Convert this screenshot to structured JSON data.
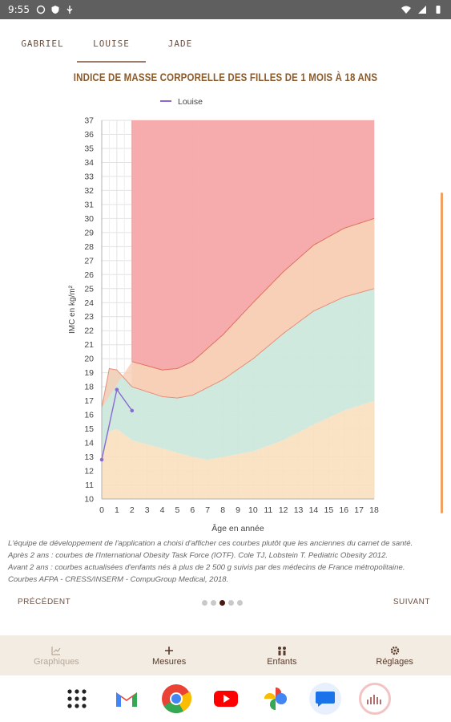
{
  "status": {
    "time": "9:55"
  },
  "tabs": [
    {
      "label": "GABRIEL",
      "active": false
    },
    {
      "label": "LOUISE",
      "active": true
    },
    {
      "label": "JADE",
      "active": false
    }
  ],
  "title": "INDICE DE MASSE CORPORELLE DES FILLES DE 1 MOIS À 18 ANS",
  "chart_data": {
    "type": "area",
    "title": "INDICE DE MASSE CORPORELLE DES FILLES DE 1 MOIS À 18 ANS",
    "xlabel": "Âge en année",
    "ylabel": "IMC en kg/m²",
    "xlim": [
      0,
      18
    ],
    "ylim": [
      10,
      37
    ],
    "legend": {
      "entries": [
        "Louise"
      ],
      "placement": "top-left"
    },
    "grid": true,
    "series": [
      {
        "name": "Louise",
        "x": [
          0,
          1,
          2
        ],
        "y": [
          12.8,
          17.8,
          16.3
        ],
        "color": "#8a6ad0"
      }
    ],
    "bands": {
      "colors": {
        "lower": "#fae0bf",
        "normal": "#cce8dc",
        "overweight": "#f8cdb4",
        "obese": "#f5a8a8"
      },
      "infant_lower_x": [
        0,
        0.5,
        1,
        2,
        4,
        6,
        7,
        8,
        10,
        12,
        14,
        16,
        18
      ],
      "infant_lower_y": [
        13,
        14.8,
        15.0,
        14.2,
        13.6,
        13.0,
        12.8,
        13.0,
        13.4,
        14.2,
        15.3,
        16.3,
        17.0
      ],
      "upper_normal_x": [
        0,
        0.5,
        1,
        2,
        4,
        5,
        6,
        8,
        10,
        12,
        14,
        16,
        18
      ],
      "upper_normal_y": [
        16.5,
        19.3,
        19.2,
        18.0,
        17.3,
        17.2,
        17.4,
        18.5,
        20.0,
        21.8,
        23.4,
        24.4,
        25.0
      ],
      "upper_overweight_x": [
        2,
        4,
        5,
        6,
        8,
        10,
        12,
        14,
        16,
        18
      ],
      "upper_overweight_y": [
        19.8,
        19.2,
        19.3,
        19.8,
        21.7,
        24.0,
        26.2,
        28.1,
        29.3,
        30.0
      ]
    }
  },
  "note": [
    "L'équipe de développement de l'application a choisi d'afficher ces courbes plutôt que les anciennes du carnet de santé.",
    "Après 2 ans : courbes de l'International Obesity Task Force (IOTF). Cole TJ, Lobstein T. Pediatric Obesity 2012.",
    "Avant 2 ans : courbes actualisées d'enfants nés à plus de 2 500 g suivis par des médecins de France métropolitaine.",
    "Courbes AFPA - CRESS/INSERM - CompuGroup Medical, 2018."
  ],
  "pager": {
    "prev": "PRÉCÉDENT",
    "next": "SUIVANT",
    "count": 5,
    "active": 2
  },
  "nav": [
    {
      "label": "Graphiques",
      "icon": "chart-icon",
      "disabled": true
    },
    {
      "label": "Mesures",
      "icon": "plus-icon",
      "disabled": false
    },
    {
      "label": "Enfants",
      "icon": "children-icon",
      "disabled": false
    },
    {
      "label": "Réglages",
      "icon": "gear-icon",
      "disabled": false
    }
  ],
  "dock": [
    "apps-grid-icon",
    "gmail-icon",
    "chrome-icon",
    "youtube-icon",
    "photos-icon",
    "messages-icon",
    "growth-app-icon"
  ]
}
